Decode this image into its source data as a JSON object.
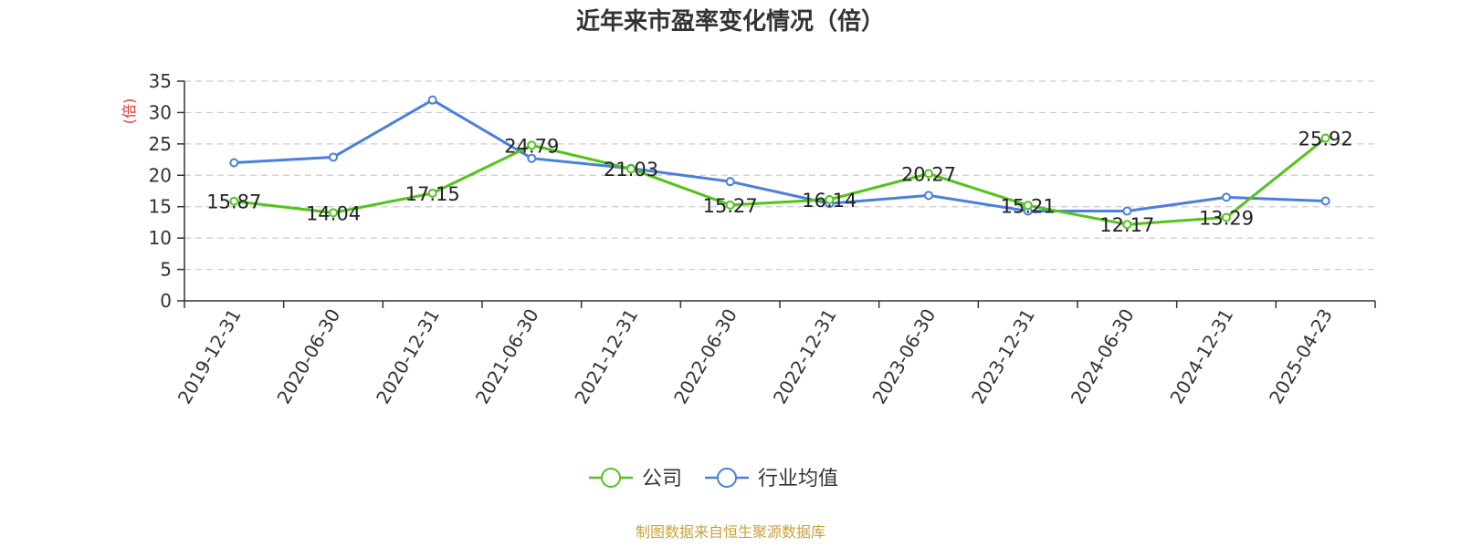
{
  "chart_data": {
    "type": "line",
    "title": "近年来市盈率变化情况（倍）",
    "ylabel": "(倍)",
    "ylim": [
      0,
      35
    ],
    "yticks": [
      0,
      5,
      10,
      15,
      20,
      25,
      30,
      35
    ],
    "grid": true,
    "legend_position": "bottom",
    "categories": [
      "2019-12-31",
      "2020-06-30",
      "2020-12-31",
      "2021-06-30",
      "2021-12-31",
      "2022-06-30",
      "2022-12-31",
      "2023-06-30",
      "2023-12-31",
      "2024-06-30",
      "2024-12-31",
      "2025-04-23"
    ],
    "series": [
      {
        "name": "公司",
        "color": "#52c41a",
        "labels": true,
        "values": [
          15.87,
          14.04,
          17.15,
          24.79,
          21.03,
          15.27,
          16.14,
          20.27,
          15.21,
          12.17,
          13.29,
          25.92
        ]
      },
      {
        "name": "行业均值",
        "color": "#4a7fdc",
        "labels": false,
        "values": [
          22.0,
          22.9,
          32.0,
          22.7,
          21.1,
          19.0,
          15.5,
          16.8,
          14.3,
          14.3,
          16.5,
          15.9
        ]
      }
    ]
  },
  "colors": {
    "ylabel": "#e8322e",
    "source": "#c8a23c",
    "axis": "#333333",
    "grid": "#cccccc"
  },
  "source_text": "制图数据来自恒生聚源数据库"
}
